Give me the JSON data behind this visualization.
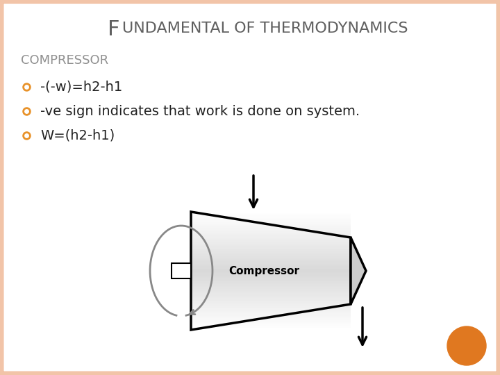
{
  "title_F": "F",
  "title_rest": "UNDAMENTAL OF THERMODYNAMICS",
  "subtitle": "COMPRESSOR",
  "bullet1": "-(-w)=h2-h1",
  "bullet2": "-ve sign indicates that work is done on system.",
  "bullet3": "W=(h2-h1)",
  "bullet_color": "#E8922A",
  "title_color": "#606060",
  "subtitle_color": "#909090",
  "text_color": "#222222",
  "bg_color": "#FFFFFF",
  "border_color": "#F2C4A8",
  "orange_dot_color": "#E07820",
  "compressor_label": "Compressor",
  "fig_width": 7.2,
  "fig_height": 5.4,
  "dpi": 100
}
